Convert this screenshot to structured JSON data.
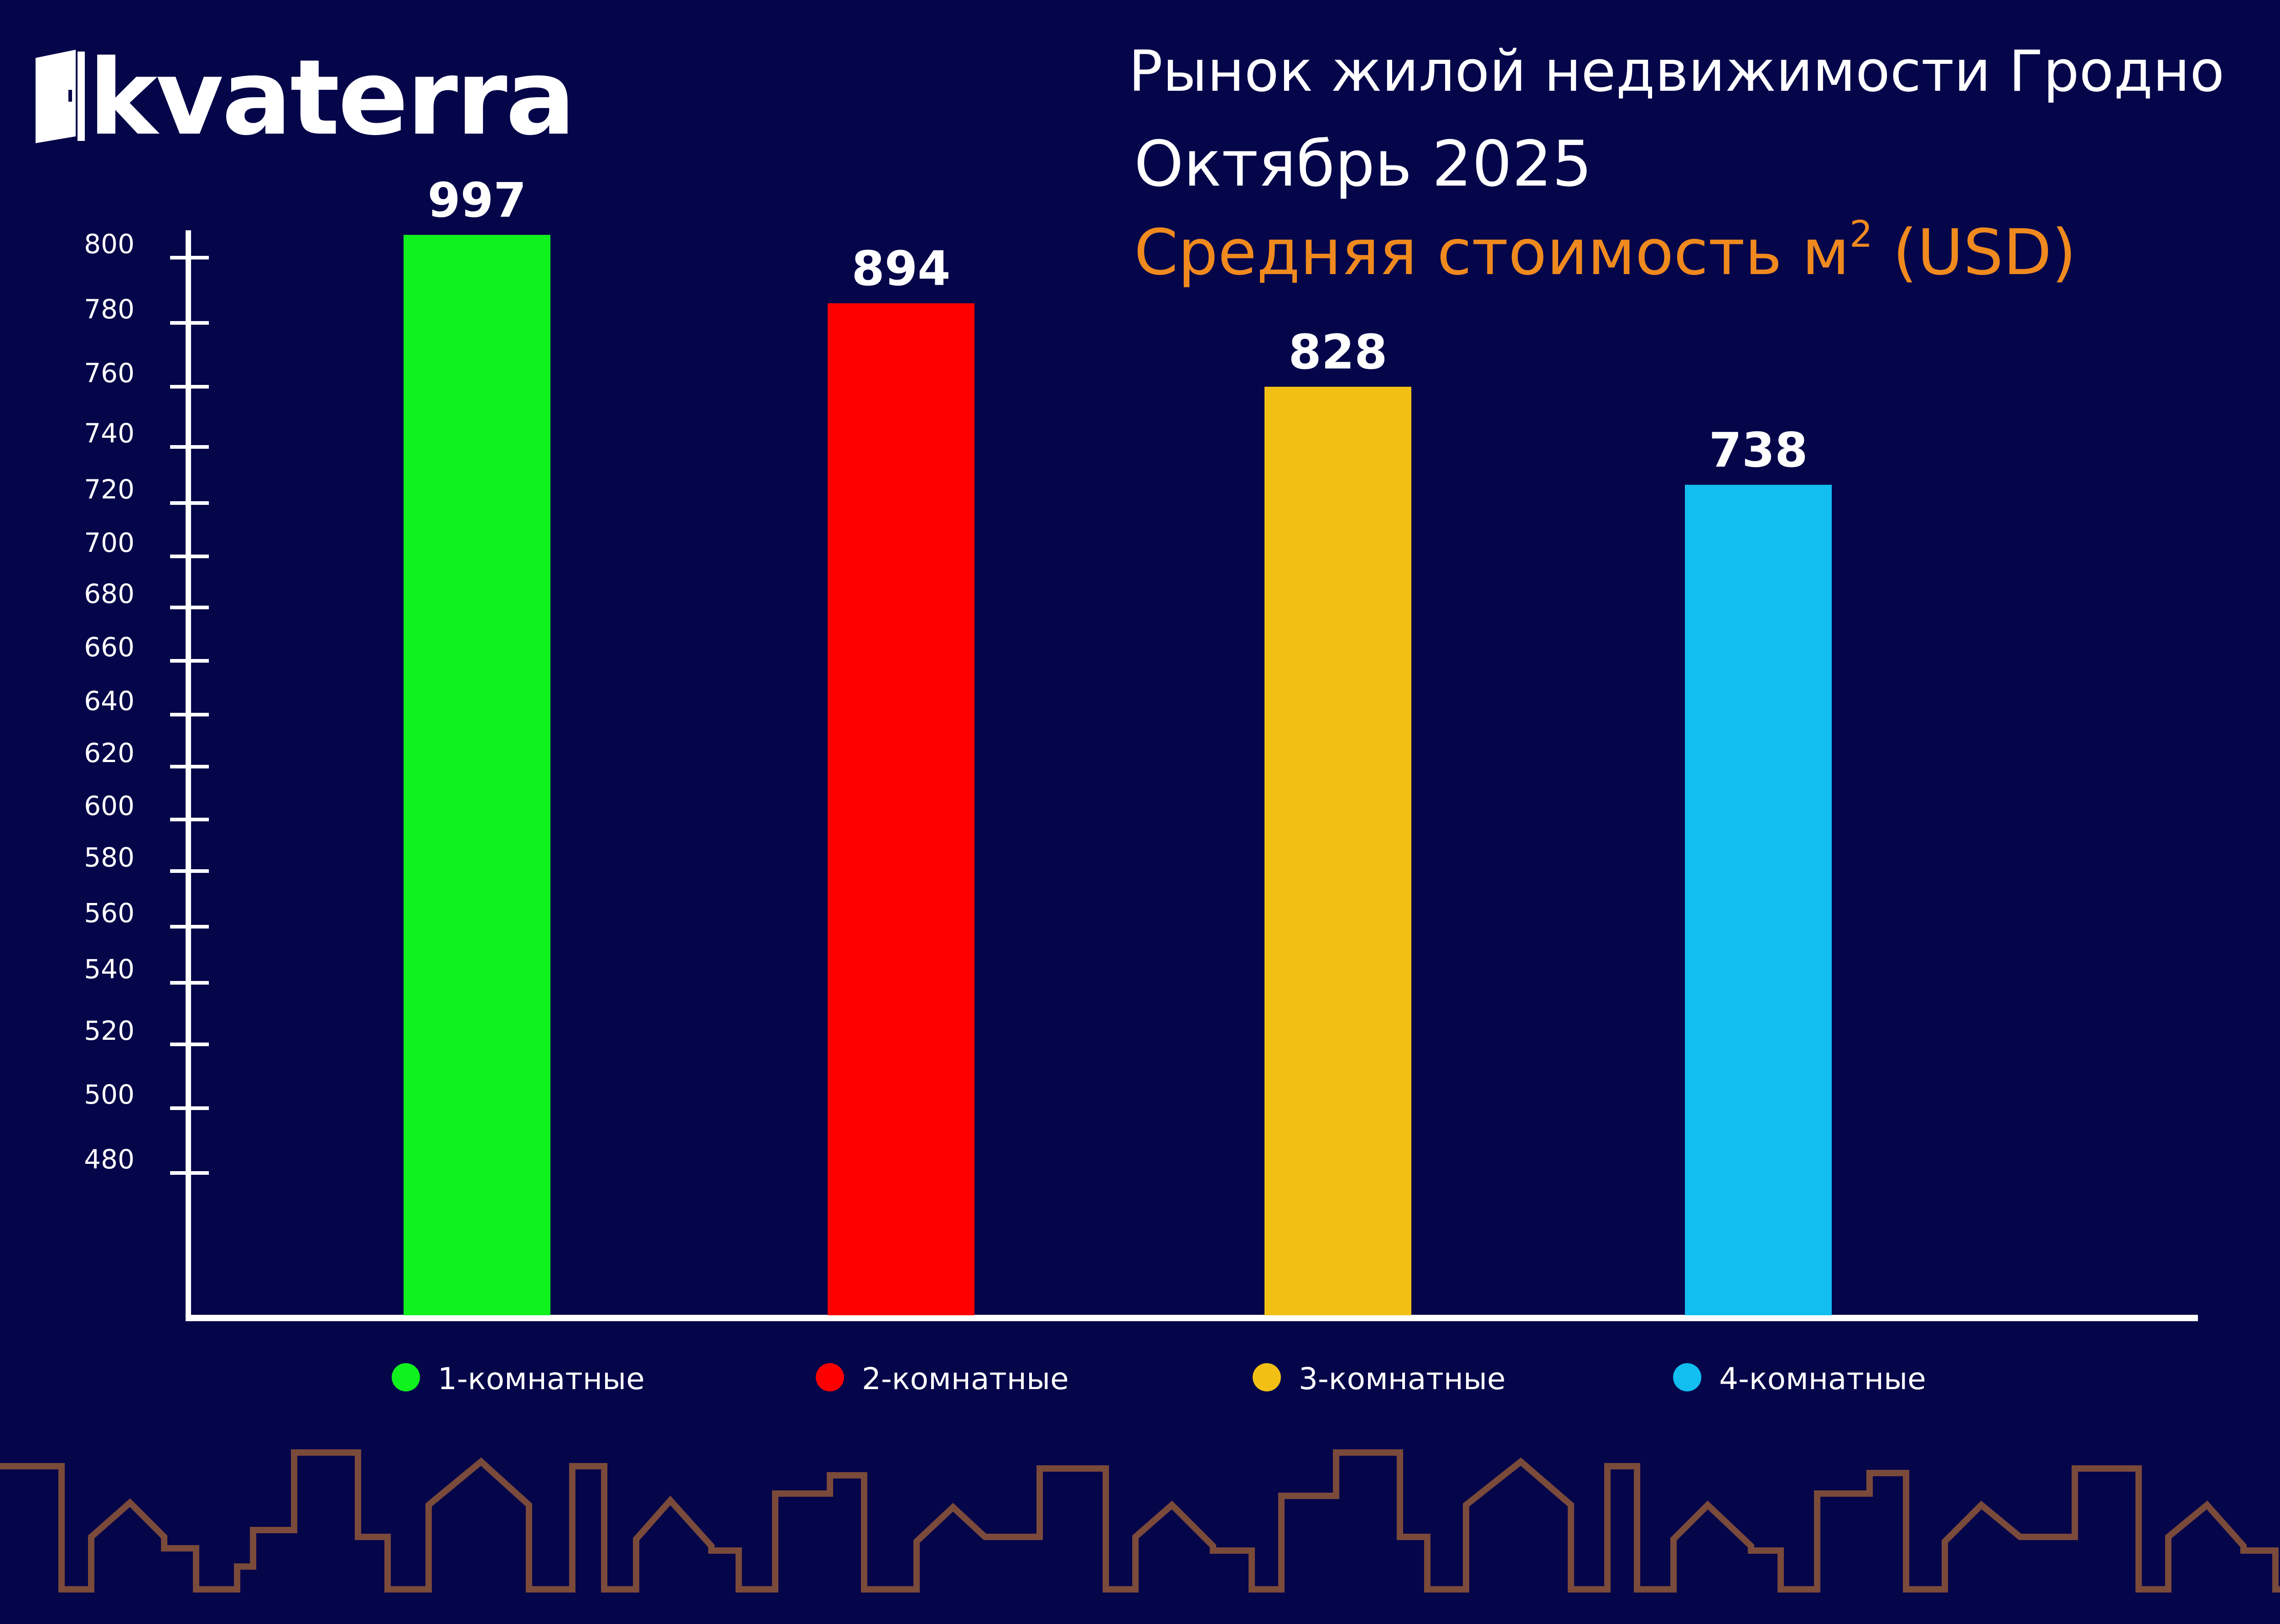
{
  "logo": {
    "text": "kvaterra",
    "icon": "door-icon"
  },
  "title": "Рынок жилой недвижимости Гродно",
  "subtitle": "Октябрь 2025",
  "metric_prefix": "Средняя стоимость м",
  "metric_sup": "2",
  "metric_suffix": " (USD)",
  "colors": {
    "background": "#05054a",
    "accent": "#f08a1e",
    "skyline": "#7a4a3a"
  },
  "chart_data": {
    "type": "bar",
    "title": "Средняя стоимость м² (USD)",
    "categories": [
      "1-комнатные",
      "2-комнатные",
      "3-комнатные",
      "4-комнатные"
    ],
    "values": [
      997,
      894,
      828,
      738
    ],
    "colors": [
      "#10f21e",
      "#ff0000",
      "#f2c014",
      "#12bdf0"
    ],
    "yticks": [
      800,
      780,
      760,
      740,
      720,
      700,
      680,
      660,
      640,
      620,
      600,
      580,
      560,
      540,
      520,
      500,
      480
    ],
    "legend": "bottom",
    "grid": false
  }
}
